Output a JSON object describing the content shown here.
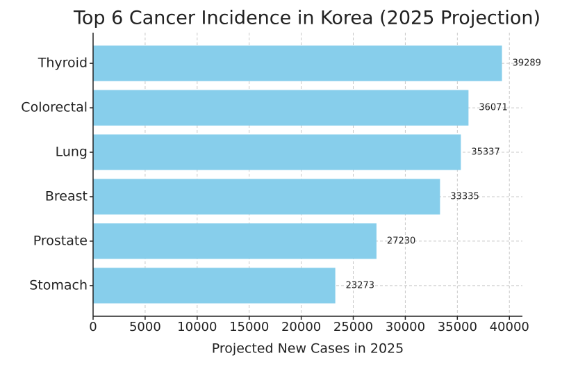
{
  "chart_data": {
    "type": "bar",
    "orientation": "horizontal",
    "title": "Top 6 Cancer Incidence in Korea (2025 Projection)",
    "x_label": "Projected New Cases in 2025",
    "categories": [
      "Thyroid",
      "Colorectal",
      "Lung",
      "Breast",
      "Prostate",
      "Stomach"
    ],
    "values": [
      39289,
      36071,
      35337,
      33335,
      27230,
      23273
    ],
    "color": "#87ceeb",
    "xlim": [
      0,
      41253
    ],
    "xticks": [
      0,
      5000,
      10000,
      15000,
      20000,
      25000,
      30000,
      35000,
      40000
    ],
    "grid": true
  }
}
